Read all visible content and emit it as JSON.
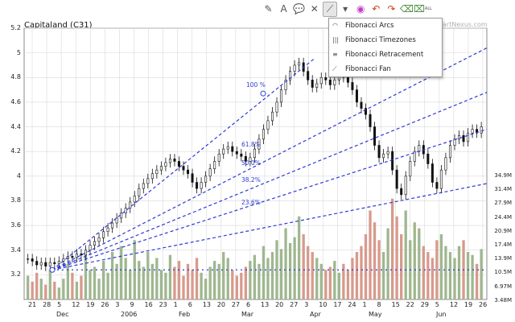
{
  "toolbar": {
    "buttons": [
      {
        "icon": "pencil-icon"
      },
      {
        "icon": "text-tool-icon"
      },
      {
        "icon": "callout-icon"
      },
      {
        "icon": "cross-marker-icon"
      },
      {
        "icon": "fibonacci-tool-icon",
        "active": true
      },
      {
        "icon": "dropdown-arrow-icon"
      },
      {
        "icon": "color-wheel-icon"
      },
      {
        "icon": "undo-icon"
      },
      {
        "icon": "redo-icon"
      },
      {
        "icon": "eraser-icon"
      },
      {
        "icon": "erase-all-icon",
        "label": "ALL"
      }
    ]
  },
  "menu": {
    "items": [
      {
        "label": "Fibonacci Arcs",
        "icon": "fibonacci-arcs-icon"
      },
      {
        "label": "Fibonacci Timezones",
        "icon": "fibonacci-timezones-icon"
      },
      {
        "label": "Fibonacci Retracement",
        "icon": "fibonacci-retracement-icon"
      },
      {
        "label": "Fibonacci Fan",
        "icon": "fibonacci-fan-icon"
      }
    ]
  },
  "chart": {
    "title": "Capitaland (C31)",
    "brand": "artNexus.com",
    "colors": {
      "up": "#9fb78f",
      "down": "#d79a8c",
      "fib": "#2d3bd6",
      "grid": "#d9d9d9",
      "candle": "#111111"
    }
  },
  "chart_data": {
    "type": "candlestick",
    "title": "Capitaland (C31)",
    "y_ticks": [
      "5.2",
      "5",
      "4.8",
      "4.6",
      "4.4",
      "4.2",
      "4",
      "3.8",
      "3.6",
      "3.4",
      "3.2"
    ],
    "ylim": [
      3.0,
      5.2
    ],
    "volume_ticks": [
      "34.9M",
      "31.4M",
      "27.9M",
      "24.4M",
      "20.9M",
      "17.4M",
      "13.9M",
      "10.5M",
      "6.97M",
      "3.48M"
    ],
    "x_day_ticks": [
      "21",
      "28",
      "5",
      "12",
      "19",
      "26",
      "3",
      "9",
      "16",
      "23",
      "1",
      "6",
      "13",
      "20",
      "27",
      "6",
      "13",
      "20",
      "27",
      "3",
      "10",
      "17",
      "24",
      "1",
      "8",
      "15",
      "22",
      "29",
      "5",
      "12",
      "19",
      "26"
    ],
    "x_month_labels": [
      "Dec",
      "2006",
      "Feb",
      "Mar",
      "Apr",
      "May",
      "Jun"
    ],
    "fibonacci_levels": [
      "100 %",
      "61.8%",
      "50.0%",
      "38.2%",
      "23.6%"
    ],
    "closes": [
      3.33,
      3.31,
      3.28,
      3.3,
      3.27,
      3.3,
      3.29,
      3.31,
      3.33,
      3.35,
      3.34,
      3.37,
      3.36,
      3.4,
      3.44,
      3.47,
      3.5,
      3.55,
      3.58,
      3.62,
      3.66,
      3.7,
      3.74,
      3.79,
      3.84,
      3.9,
      3.94,
      3.98,
      4.02,
      4.05,
      4.08,
      4.11,
      4.14,
      4.12,
      4.08,
      4.05,
      4.02,
      3.95,
      3.9,
      3.95,
      4.0,
      4.06,
      4.12,
      4.18,
      4.22,
      4.24,
      4.2,
      4.18,
      4.16,
      4.12,
      4.15,
      4.22,
      4.3,
      4.38,
      4.45,
      4.52,
      4.6,
      4.7,
      4.78,
      4.85,
      4.9,
      4.92,
      4.85,
      4.78,
      4.72,
      4.75,
      4.8,
      4.78,
      4.74,
      4.78,
      4.82,
      4.8,
      4.76,
      4.7,
      4.6,
      4.55,
      4.5,
      4.4,
      4.25,
      4.15,
      4.18,
      4.2,
      4.05,
      3.9,
      3.85,
      4.0,
      4.12,
      4.2,
      4.25,
      4.18,
      4.1,
      3.95,
      3.9,
      4.05,
      4.15,
      4.25,
      4.3,
      4.33,
      4.28,
      4.35,
      4.38,
      4.35,
      4.4
    ],
    "volumes": [
      8,
      6,
      9,
      7,
      5,
      10,
      6,
      4,
      7,
      12,
      9,
      6,
      8,
      15,
      10,
      11,
      7,
      13,
      9,
      16,
      12,
      18,
      14,
      10,
      20,
      13,
      11,
      16,
      12,
      14,
      10,
      9,
      15,
      11,
      13,
      8,
      12,
      10,
      14,
      9,
      7,
      11,
      13,
      12,
      16,
      14,
      10,
      8,
      9,
      11,
      13,
      15,
      12,
      18,
      14,
      16,
      20,
      17,
      24,
      19,
      21,
      28,
      22,
      18,
      16,
      14,
      12,
      10,
      11,
      13,
      9,
      12,
      10,
      14,
      16,
      18,
      22,
      30,
      26,
      20,
      16,
      24,
      34,
      28,
      22,
      30,
      20,
      26,
      24,
      18,
      16,
      14,
      20,
      22,
      18,
      16,
      14,
      18,
      20,
      16,
      15,
      12,
      17
    ]
  }
}
